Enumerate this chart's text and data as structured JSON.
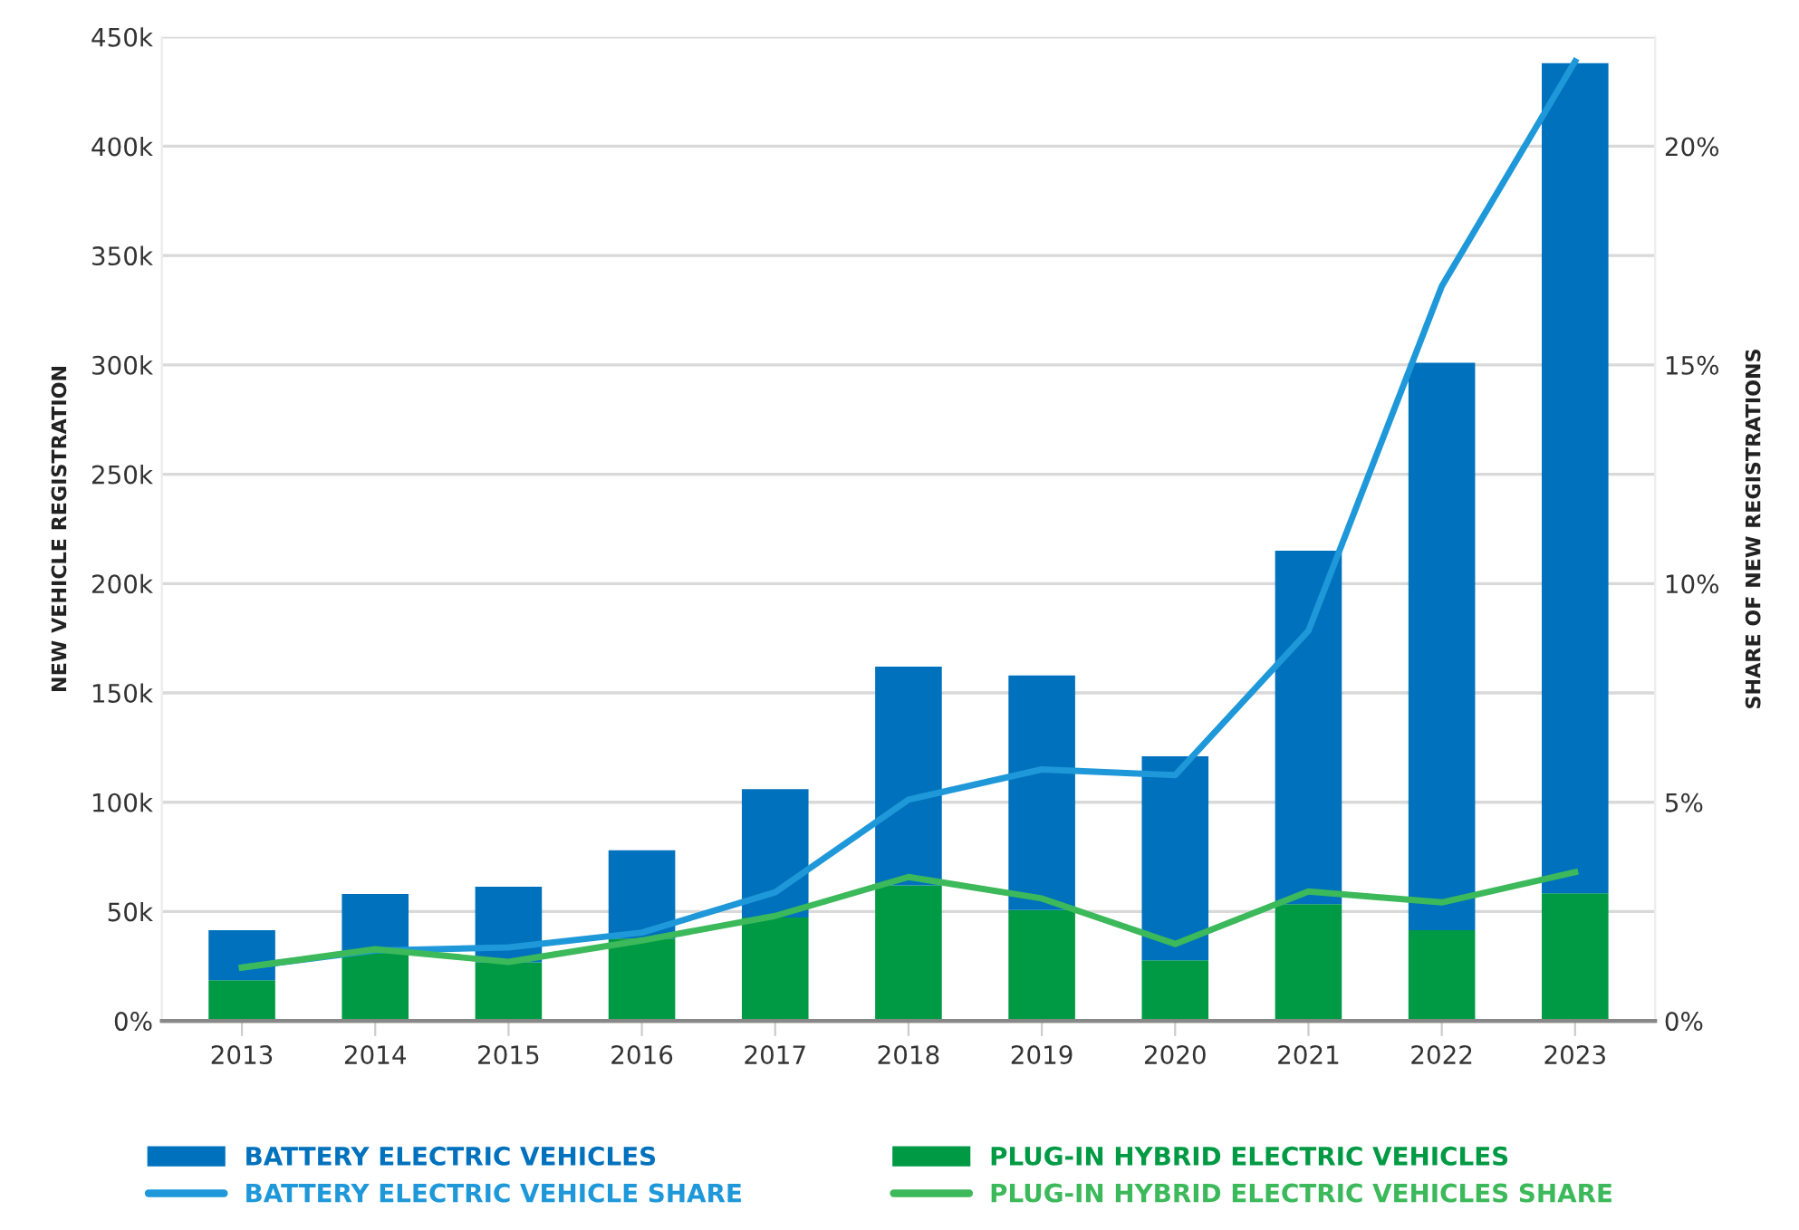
{
  "chart_data": {
    "type": "bar",
    "stacked": true,
    "categories": [
      "2013",
      "2014",
      "2015",
      "2016",
      "2017",
      "2018",
      "2019",
      "2020",
      "2021",
      "2022",
      "2023"
    ],
    "ylabel": "NEW VEHICLE REGISTRATION",
    "y2label": "SHARE OF NEW REGISTRATIONS",
    "ylim": [
      0,
      450
    ],
    "yticks": [
      {
        "value": 0,
        "label": "0%"
      },
      {
        "value": 50,
        "label": "50k"
      },
      {
        "value": 100,
        "label": "100k"
      },
      {
        "value": 150,
        "label": "150k"
      },
      {
        "value": 200,
        "label": "200k"
      },
      {
        "value": 250,
        "label": "250k"
      },
      {
        "value": 300,
        "label": "300k"
      },
      {
        "value": 350,
        "label": "350k"
      },
      {
        "value": 400,
        "label": "400k"
      },
      {
        "value": 450,
        "label": "450k"
      }
    ],
    "y2lim": [
      0,
      22.5
    ],
    "y2ticks": [
      {
        "value": 0,
        "label": "0%"
      },
      {
        "value": 5,
        "label": "5%"
      },
      {
        "value": 10,
        "label": "10%"
      },
      {
        "value": 15,
        "label": "15%"
      },
      {
        "value": 20,
        "label": "20%"
      }
    ],
    "grid": "y",
    "legend": "bottom",
    "series": [
      {
        "name": "PLUG-IN HYBRID ELECTRIC VEHICLES",
        "color": "#009a44",
        "values": [
          18.6,
          31.5,
          26.8,
          37.6,
          47.3,
          62,
          50.7,
          27.7,
          53.4,
          41.5,
          58.4
        ]
      },
      {
        "name": "BATTERY ELECTRIC VEHICLES",
        "color": "#0071bc",
        "values": [
          22.9,
          26.5,
          34.6,
          40.4,
          58.7,
          100,
          107.3,
          93.3,
          161.6,
          259.5,
          379.6
        ]
      },
      {
        "name": "BATTERY ELECTRIC VEHICLE SHARE",
        "type": "line",
        "axis": "y2",
        "color": "#1e98d9",
        "values": [
          1.22,
          1.61,
          1.68,
          2.02,
          2.94,
          5.06,
          5.75,
          5.62,
          8.92,
          16.8,
          21.94
        ]
      },
      {
        "name": "PLUG-IN HYBRID ELECTRIC VEHICLES SHARE",
        "type": "line",
        "axis": "y2",
        "color": "#3cb95a",
        "values": [
          1.22,
          1.64,
          1.35,
          1.84,
          2.4,
          3.29,
          2.8,
          1.76,
          2.96,
          2.71,
          3.4
        ]
      }
    ]
  }
}
